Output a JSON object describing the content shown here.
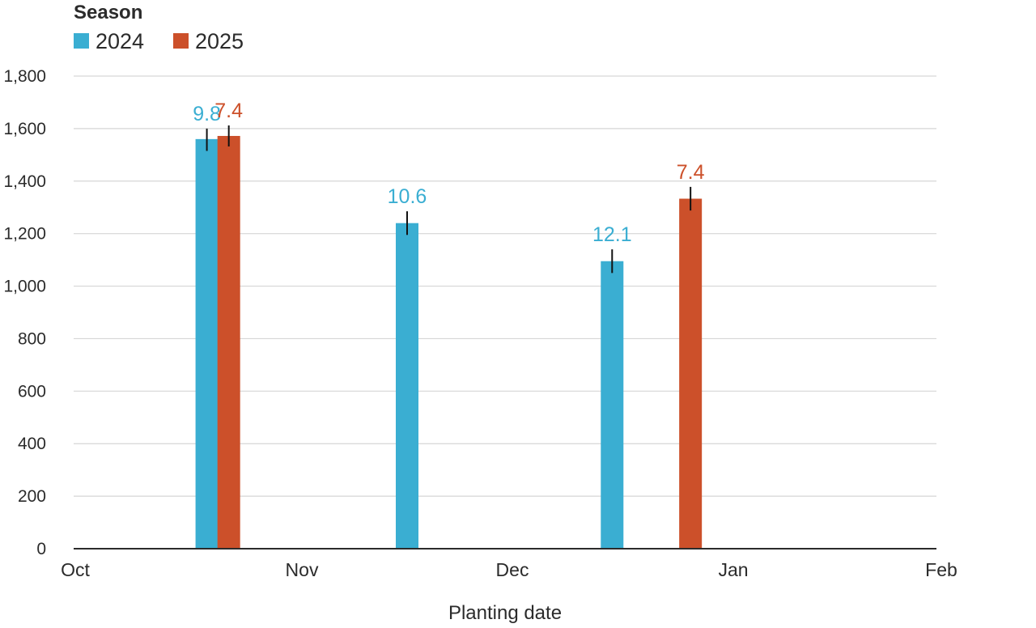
{
  "chart_data": {
    "type": "bar",
    "legend": {
      "title": "Season",
      "placement": "top-left",
      "entries": [
        {
          "name": "2024",
          "color": "#3AAED2"
        },
        {
          "name": "2025",
          "color": "#CC502A"
        }
      ]
    },
    "xlabel": "Planting date",
    "ylabel": "",
    "x_ticks": [
      "Oct",
      "Nov",
      "Dec",
      "Jan",
      "Feb"
    ],
    "x_range": [
      "Oct 1",
      "Feb 1"
    ],
    "ylim": [
      0,
      1800
    ],
    "y_ticks": [
      0,
      200,
      400,
      600,
      800,
      1000,
      1200,
      1400,
      1600,
      1800
    ],
    "y_tick_labels": [
      "0",
      "200",
      "400",
      "600",
      "800",
      "1,000",
      "1,200",
      "1,400",
      "1,600",
      "1,800"
    ],
    "grid": true,
    "series": [
      {
        "name": "2024",
        "color": "#3AAED2",
        "points": [
          {
            "x": "Oct 19",
            "value": 1560,
            "err_low": 1515,
            "err_high": 1600,
            "label": "9.8"
          },
          {
            "x": "Nov 16",
            "value": 1240,
            "err_low": 1195,
            "err_high": 1285,
            "label": "10.6"
          },
          {
            "x": "Dec 15",
            "value": 1095,
            "err_low": 1050,
            "err_high": 1140,
            "label": "12.1"
          }
        ]
      },
      {
        "name": "2025",
        "color": "#CC502A",
        "points": [
          {
            "x": "Oct 22",
            "value": 1572,
            "err_low": 1532,
            "err_high": 1612,
            "label": "7.4"
          },
          {
            "x": "Dec 26",
            "value": 1333,
            "err_low": 1288,
            "err_high": 1378,
            "label": "7.4"
          }
        ]
      }
    ]
  }
}
